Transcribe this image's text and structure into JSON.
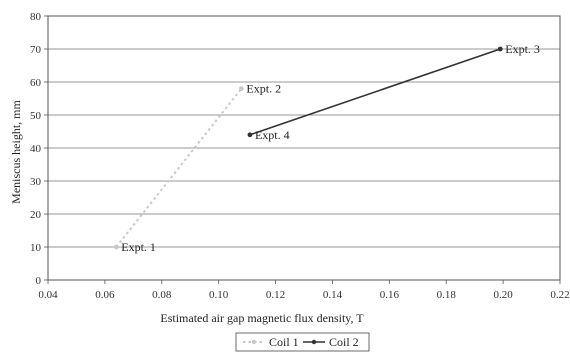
{
  "chart_data": {
    "type": "line",
    "title": "",
    "xlabel": "Estimated air gap magnetic flux density, T",
    "ylabel": "Meniscus height, mm",
    "xlim": [
      0.04,
      0.22
    ],
    "ylim": [
      0,
      80
    ],
    "x_ticks": [
      "0.04",
      "0.06",
      "0.08",
      "0.10",
      "0.12",
      "0.14",
      "0.16",
      "0.18",
      "0.20",
      "0.22"
    ],
    "y_ticks": [
      "0",
      "10",
      "20",
      "30",
      "40",
      "50",
      "60",
      "70",
      "80"
    ],
    "grid": "horizontal",
    "legend": "bottom",
    "series": [
      {
        "name": "Coil 1",
        "color": "#c8c8c8",
        "style": "dashed",
        "points": [
          {
            "x": 0.064,
            "y": 10,
            "label": "Expt. 1"
          },
          {
            "x": 0.108,
            "y": 58,
            "label": "Expt. 2"
          }
        ]
      },
      {
        "name": "Coil 2",
        "color": "#333333",
        "style": "solid",
        "points": [
          {
            "x": 0.199,
            "y": 70,
            "label": "Expt. 3"
          },
          {
            "x": 0.111,
            "y": 44,
            "label": "Expt. 4"
          }
        ]
      }
    ]
  }
}
